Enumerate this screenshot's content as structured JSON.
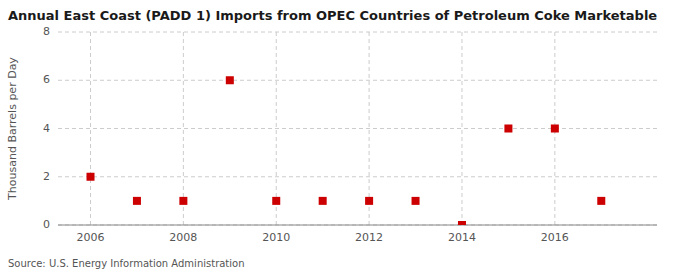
{
  "chart_data": {
    "type": "scatter",
    "title": "Annual East Coast (PADD 1) Imports from OPEC Countries of Petroleum Coke Marketable",
    "ylabel": "Thousand Barrels per Day",
    "source": "Source: U.S. Energy Information Administration",
    "x": [
      2006,
      2007,
      2008,
      2009,
      2010,
      2011,
      2012,
      2013,
      2014,
      2015,
      2016,
      2017
    ],
    "values": [
      2,
      1,
      1,
      6,
      1,
      1,
      1,
      1,
      0,
      4,
      4,
      1
    ],
    "color": "#cc0000",
    "marker": "square",
    "xlim": [
      2005.3,
      2018.2
    ],
    "ylim": [
      0,
      8
    ],
    "xticks": [
      2006,
      2008,
      2010,
      2012,
      2014,
      2016
    ],
    "yticks": [
      0,
      2,
      4,
      6,
      8
    ],
    "grid": true
  }
}
